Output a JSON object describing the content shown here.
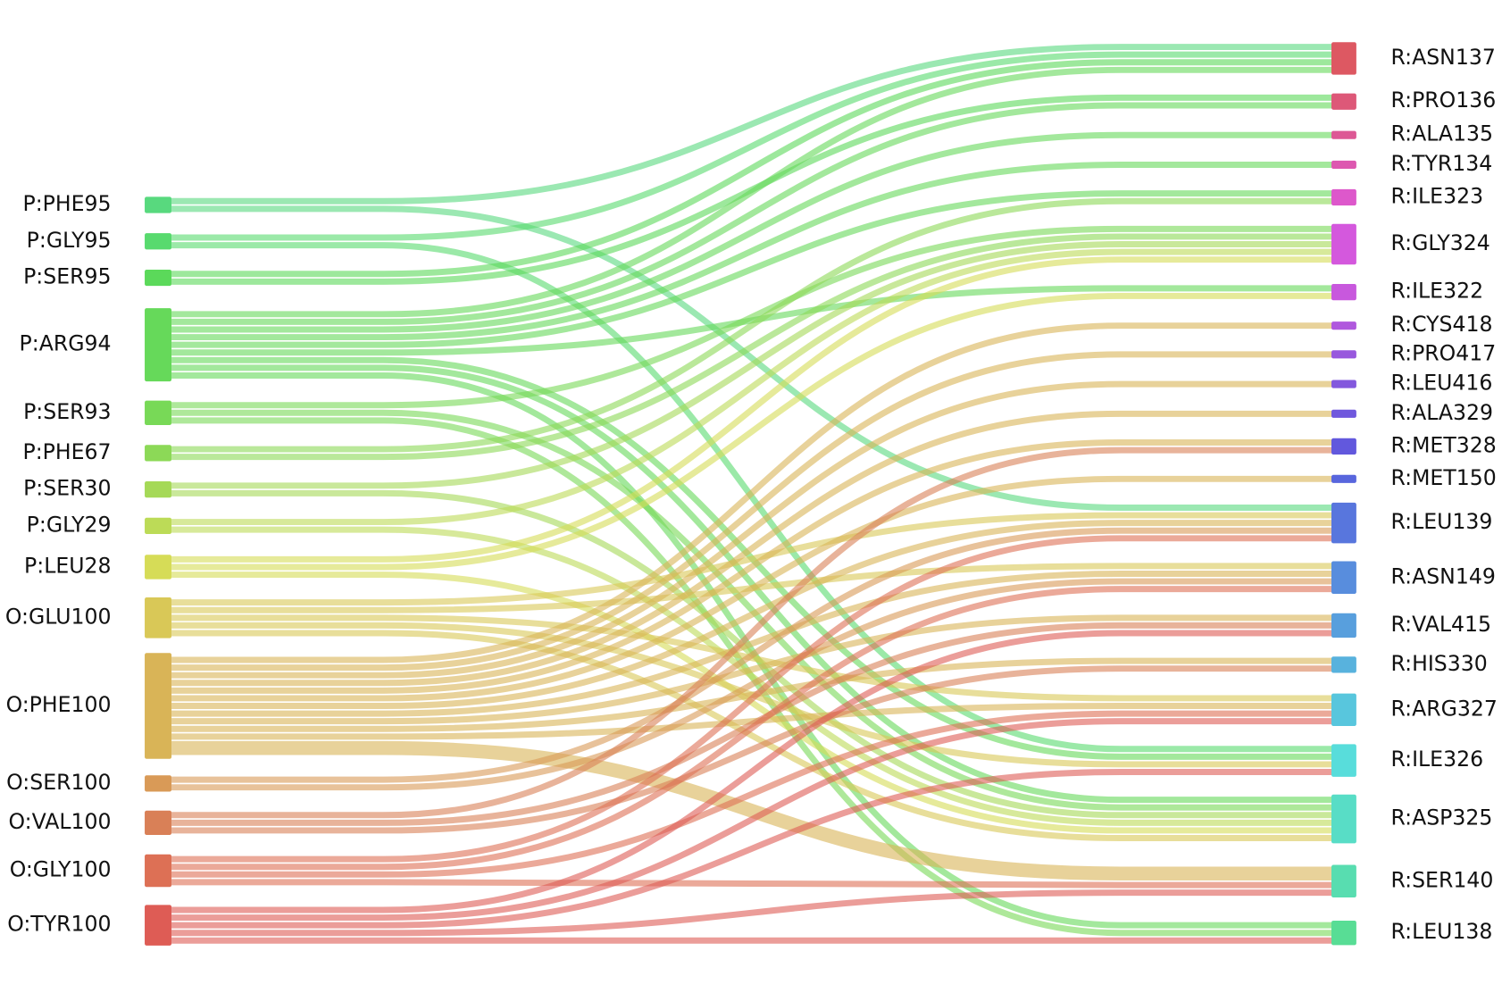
{
  "left_nodes": [
    {
      "label": "P:PHE95",
      "color": "#58d97e"
    },
    {
      "label": "P:GLY95",
      "color": "#58da6e"
    },
    {
      "label": "P:SER95",
      "color": "#5bd95a"
    },
    {
      "label": "P:ARG94",
      "color": "#66d95a"
    },
    {
      "label": "P:SER93",
      "color": "#78d957"
    },
    {
      "label": "P:PHE67",
      "color": "#8cd957"
    },
    {
      "label": "P:SER30",
      "color": "#a5d957"
    },
    {
      "label": "P:GLY29",
      "color": "#bcdb57"
    },
    {
      "label": "P:LEU28",
      "color": "#d6dc57"
    },
    {
      "label": "O:GLU100",
      "color": "#d9c857"
    },
    {
      "label": "O:PHE100",
      "color": "#d9b457"
    },
    {
      "label": "O:SER100",
      "color": "#d99a57"
    },
    {
      "label": "O:VAL100",
      "color": "#d98057"
    },
    {
      "label": "O:GLY100",
      "color": "#dd7055"
    },
    {
      "label": "O:TYR100",
      "color": "#de5c55"
    }
  ],
  "right_nodes": [
    {
      "label": "R:ASN137",
      "color": "#dd5862"
    },
    {
      "label": "R:PRO136",
      "color": "#dd5878"
    },
    {
      "label": "R:ALA135",
      "color": "#dd5895"
    },
    {
      "label": "R:TYR134",
      "color": "#dd58b0"
    },
    {
      "label": "R:ILE323",
      "color": "#dd58cb"
    },
    {
      "label": "R:GLY324",
      "color": "#d458dd"
    },
    {
      "label": "R:ILE322",
      "color": "#c858dd"
    },
    {
      "label": "R:CYS418",
      "color": "#b058dd"
    },
    {
      "label": "R:PRO417",
      "color": "#9858dd"
    },
    {
      "label": "R:LEU416",
      "color": "#8358dd"
    },
    {
      "label": "R:ALA329",
      "color": "#7058dd"
    },
    {
      "label": "R:MET328",
      "color": "#6258dd"
    },
    {
      "label": "R:MET150",
      "color": "#5866dd"
    },
    {
      "label": "R:LEU139",
      "color": "#5876dd"
    },
    {
      "label": "R:ASN149",
      "color": "#588ddd"
    },
    {
      "label": "R:VAL415",
      "color": "#589fdd"
    },
    {
      "label": "R:HIS330",
      "color": "#58b2dd"
    },
    {
      "label": "R:ARG327",
      "color": "#58c6dd"
    },
    {
      "label": "R:ILE326",
      "color": "#58dddb"
    },
    {
      "label": "R:ASP325",
      "color": "#58ddc6"
    },
    {
      "label": "R:SER140",
      "color": "#58ddb0"
    },
    {
      "label": "R:LEU138",
      "color": "#58dd95"
    }
  ],
  "links": [
    {
      "source": 0,
      "target": 0,
      "value": 1
    },
    {
      "source": 0,
      "target": 13,
      "value": 1
    },
    {
      "source": 1,
      "target": 0,
      "value": 1
    },
    {
      "source": 1,
      "target": 18,
      "value": 1
    },
    {
      "source": 2,
      "target": 0,
      "value": 1
    },
    {
      "source": 2,
      "target": 1,
      "value": 1
    },
    {
      "source": 3,
      "target": 0,
      "value": 1
    },
    {
      "source": 3,
      "target": 1,
      "value": 1
    },
    {
      "source": 3,
      "target": 2,
      "value": 1
    },
    {
      "source": 3,
      "target": 3,
      "value": 1
    },
    {
      "source": 3,
      "target": 4,
      "value": 1
    },
    {
      "source": 3,
      "target": 6,
      "value": 1
    },
    {
      "source": 3,
      "target": 18,
      "value": 1
    },
    {
      "source": 3,
      "target": 19,
      "value": 1
    },
    {
      "source": 3,
      "target": 21,
      "value": 1
    },
    {
      "source": 4,
      "target": 5,
      "value": 1
    },
    {
      "source": 4,
      "target": 19,
      "value": 1
    },
    {
      "source": 4,
      "target": 21,
      "value": 1
    },
    {
      "source": 5,
      "target": 4,
      "value": 1
    },
    {
      "source": 5,
      "target": 5,
      "value": 1
    },
    {
      "source": 6,
      "target": 5,
      "value": 1
    },
    {
      "source": 6,
      "target": 19,
      "value": 1
    },
    {
      "source": 7,
      "target": 5,
      "value": 1
    },
    {
      "source": 7,
      "target": 19,
      "value": 1
    },
    {
      "source": 8,
      "target": 5,
      "value": 1
    },
    {
      "source": 8,
      "target": 6,
      "value": 1
    },
    {
      "source": 8,
      "target": 19,
      "value": 1
    },
    {
      "source": 9,
      "target": 13,
      "value": 1
    },
    {
      "source": 9,
      "target": 14,
      "value": 1
    },
    {
      "source": 9,
      "target": 17,
      "value": 1
    },
    {
      "source": 9,
      "target": 18,
      "value": 1
    },
    {
      "source": 9,
      "target": 19,
      "value": 1
    },
    {
      "source": 10,
      "target": 7,
      "value": 1
    },
    {
      "source": 10,
      "target": 8,
      "value": 1
    },
    {
      "source": 10,
      "target": 9,
      "value": 1
    },
    {
      "source": 10,
      "target": 10,
      "value": 1
    },
    {
      "source": 10,
      "target": 11,
      "value": 1
    },
    {
      "source": 10,
      "target": 12,
      "value": 1
    },
    {
      "source": 10,
      "target": 13,
      "value": 1
    },
    {
      "source": 10,
      "target": 14,
      "value": 1
    },
    {
      "source": 10,
      "target": 15,
      "value": 1
    },
    {
      "source": 10,
      "target": 16,
      "value": 1
    },
    {
      "source": 10,
      "target": 17,
      "value": 1
    },
    {
      "source": 10,
      "target": 20,
      "value": 2
    },
    {
      "source": 11,
      "target": 13,
      "value": 1
    },
    {
      "source": 11,
      "target": 14,
      "value": 1
    },
    {
      "source": 12,
      "target": 11,
      "value": 1
    },
    {
      "source": 12,
      "target": 15,
      "value": 1
    },
    {
      "source": 12,
      "target": 16,
      "value": 1
    },
    {
      "source": 13,
      "target": 13,
      "value": 1
    },
    {
      "source": 13,
      "target": 14,
      "value": 1
    },
    {
      "source": 13,
      "target": 17,
      "value": 1
    },
    {
      "source": 13,
      "target": 20,
      "value": 1
    },
    {
      "source": 14,
      "target": 15,
      "value": 1
    },
    {
      "source": 14,
      "target": 17,
      "value": 1
    },
    {
      "source": 14,
      "target": 18,
      "value": 1
    },
    {
      "source": 14,
      "target": 20,
      "value": 1
    },
    {
      "source": 14,
      "target": 21,
      "value": 1
    }
  ]
}
